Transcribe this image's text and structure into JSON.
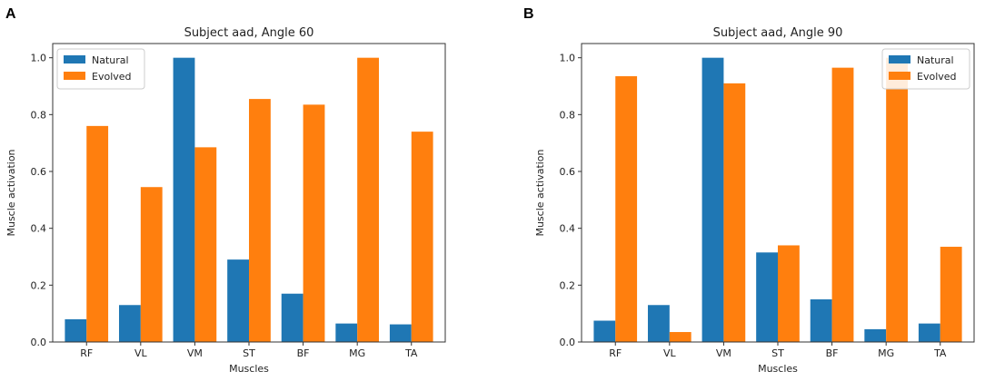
{
  "chart_data": [
    {
      "type": "bar",
      "panel_label": "A",
      "title": "Subject aad, Angle 60",
      "xlabel": "Muscles",
      "ylabel": "Muscle activation",
      "ylim": [
        0,
        1.05
      ],
      "yticks": [
        "0.0",
        "0.2",
        "0.4",
        "0.6",
        "0.8",
        "1.0"
      ],
      "categories": [
        "RF",
        "VL",
        "VM",
        "ST",
        "BF",
        "MG",
        "TA"
      ],
      "legend_position": "top-left",
      "series": [
        {
          "name": "Natural",
          "color": "#1f77b4",
          "values": [
            0.08,
            0.13,
            1.0,
            0.29,
            0.17,
            0.065,
            0.062
          ]
        },
        {
          "name": "Evolved",
          "color": "#ff7f0e",
          "values": [
            0.76,
            0.545,
            0.685,
            0.855,
            0.835,
            1.0,
            0.74
          ]
        }
      ]
    },
    {
      "type": "bar",
      "panel_label": "B",
      "title": "Subject aad, Angle 90",
      "xlabel": "Muscles",
      "ylabel": "Muscle activation",
      "ylim": [
        0,
        1.05
      ],
      "yticks": [
        "0.0",
        "0.2",
        "0.4",
        "0.6",
        "0.8",
        "1.0"
      ],
      "categories": [
        "RF",
        "VL",
        "VM",
        "ST",
        "BF",
        "MG",
        "TA"
      ],
      "legend_position": "top-right",
      "series": [
        {
          "name": "Natural",
          "color": "#1f77b4",
          "values": [
            0.075,
            0.13,
            1.0,
            0.315,
            0.15,
            0.045,
            0.065
          ]
        },
        {
          "name": "Evolved",
          "color": "#ff7f0e",
          "values": [
            0.935,
            0.035,
            0.91,
            0.34,
            0.965,
            1.0,
            0.335
          ]
        }
      ]
    }
  ]
}
